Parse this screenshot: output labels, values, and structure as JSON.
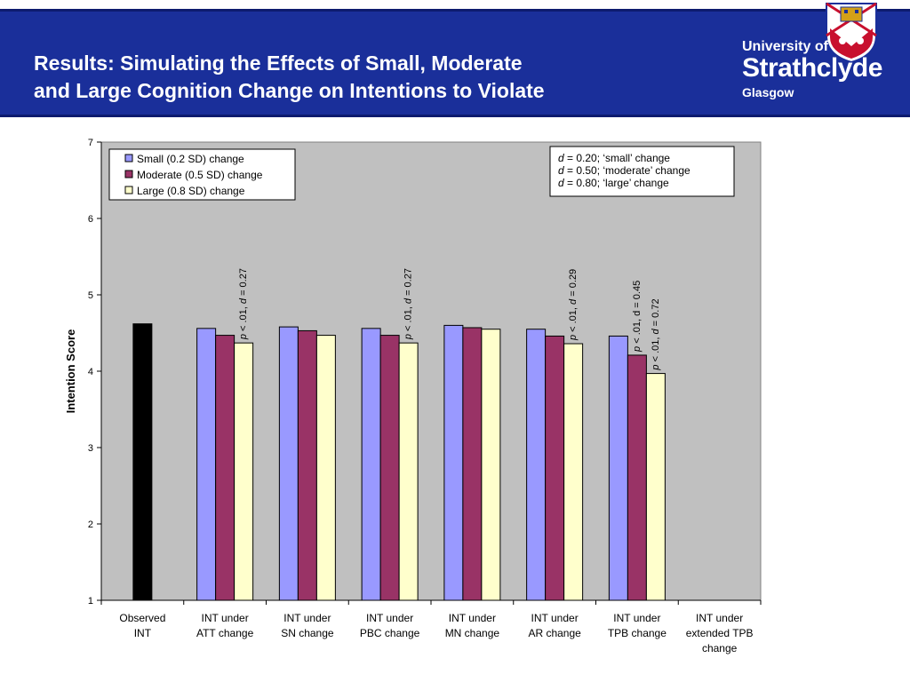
{
  "slide": {
    "title_line1": "Results: Simulating the Effects of Small, Moderate",
    "title_line2": "and Large Cognition Change on Intentions to Violate"
  },
  "logo": {
    "line1": "University of",
    "line2": "Strathclyde",
    "line3": "Glasgow"
  },
  "colors": {
    "header_band": "#1a2f9a",
    "plot_bg": "#c0c0c0",
    "observed": "#000000",
    "small": "#9999ff",
    "moderate": "#993366",
    "large": "#ffffcc"
  },
  "chart_data": {
    "type": "bar",
    "ylabel": "Intention Score",
    "xlabel": "",
    "ylim": [
      1,
      7
    ],
    "yticks": [
      1,
      2,
      3,
      4,
      5,
      6,
      7
    ],
    "grid": false,
    "legend_position": "top-left",
    "categories": [
      [
        "Observed",
        "INT"
      ],
      [
        "INT under",
        "ATT change"
      ],
      [
        "INT under",
        "SN change"
      ],
      [
        "INT under",
        "PBC change"
      ],
      [
        "INT under",
        "MN change"
      ],
      [
        "INT under",
        "AR change"
      ],
      [
        "INT under",
        "TPB change"
      ],
      [
        "INT under",
        "extended TPB",
        "change"
      ]
    ],
    "observed": {
      "category_index": 0,
      "value": 4.62
    },
    "series": [
      {
        "name": "Small (0.2 SD) change",
        "color": "#9999ff",
        "values": [
          null,
          4.56,
          4.58,
          4.56,
          4.6,
          4.55,
          4.46,
          null
        ]
      },
      {
        "name": "Moderate (0.5 SD) change",
        "color": "#993366",
        "values": [
          null,
          4.47,
          4.53,
          4.47,
          4.57,
          4.46,
          4.21,
          null
        ]
      },
      {
        "name": "Large (0.8 SD) change",
        "color": "#ffffcc",
        "values": [
          null,
          4.37,
          4.47,
          4.37,
          4.55,
          4.36,
          3.97,
          null
        ]
      }
    ],
    "annotations": [
      {
        "category_index": 1,
        "series_index": 2,
        "parts": [
          [
            "p",
            true
          ],
          [
            " < .01, ",
            false
          ],
          [
            "d",
            true
          ],
          [
            " = 0.27",
            false
          ]
        ]
      },
      {
        "category_index": 3,
        "series_index": 2,
        "parts": [
          [
            "p",
            true
          ],
          [
            " < .01, ",
            false
          ],
          [
            "d",
            true
          ],
          [
            " = 0.27",
            false
          ]
        ]
      },
      {
        "category_index": 5,
        "series_index": 2,
        "parts": [
          [
            "p",
            true
          ],
          [
            " < .01, ",
            false
          ],
          [
            "d",
            true
          ],
          [
            " = 0.29",
            false
          ]
        ]
      },
      {
        "category_index": 6,
        "series_index": 1,
        "parts": [
          [
            "p",
            true
          ],
          [
            " < .01, d = 0.45",
            false
          ]
        ]
      },
      {
        "category_index": 6,
        "series_index": 2,
        "parts": [
          [
            "p",
            true
          ],
          [
            " < .01, ",
            false
          ],
          [
            "d",
            true
          ],
          [
            " = 0.72",
            false
          ]
        ]
      }
    ],
    "effect_size_box": [
      [
        [
          "d",
          true
        ],
        [
          " = 0.20; ‘small’ change",
          false
        ]
      ],
      [
        [
          "d",
          true
        ],
        [
          " = 0.50; ‘moderate’ change",
          false
        ]
      ],
      [
        [
          "d",
          true
        ],
        [
          " = 0.80; ‘large’ change",
          false
        ]
      ]
    ]
  }
}
